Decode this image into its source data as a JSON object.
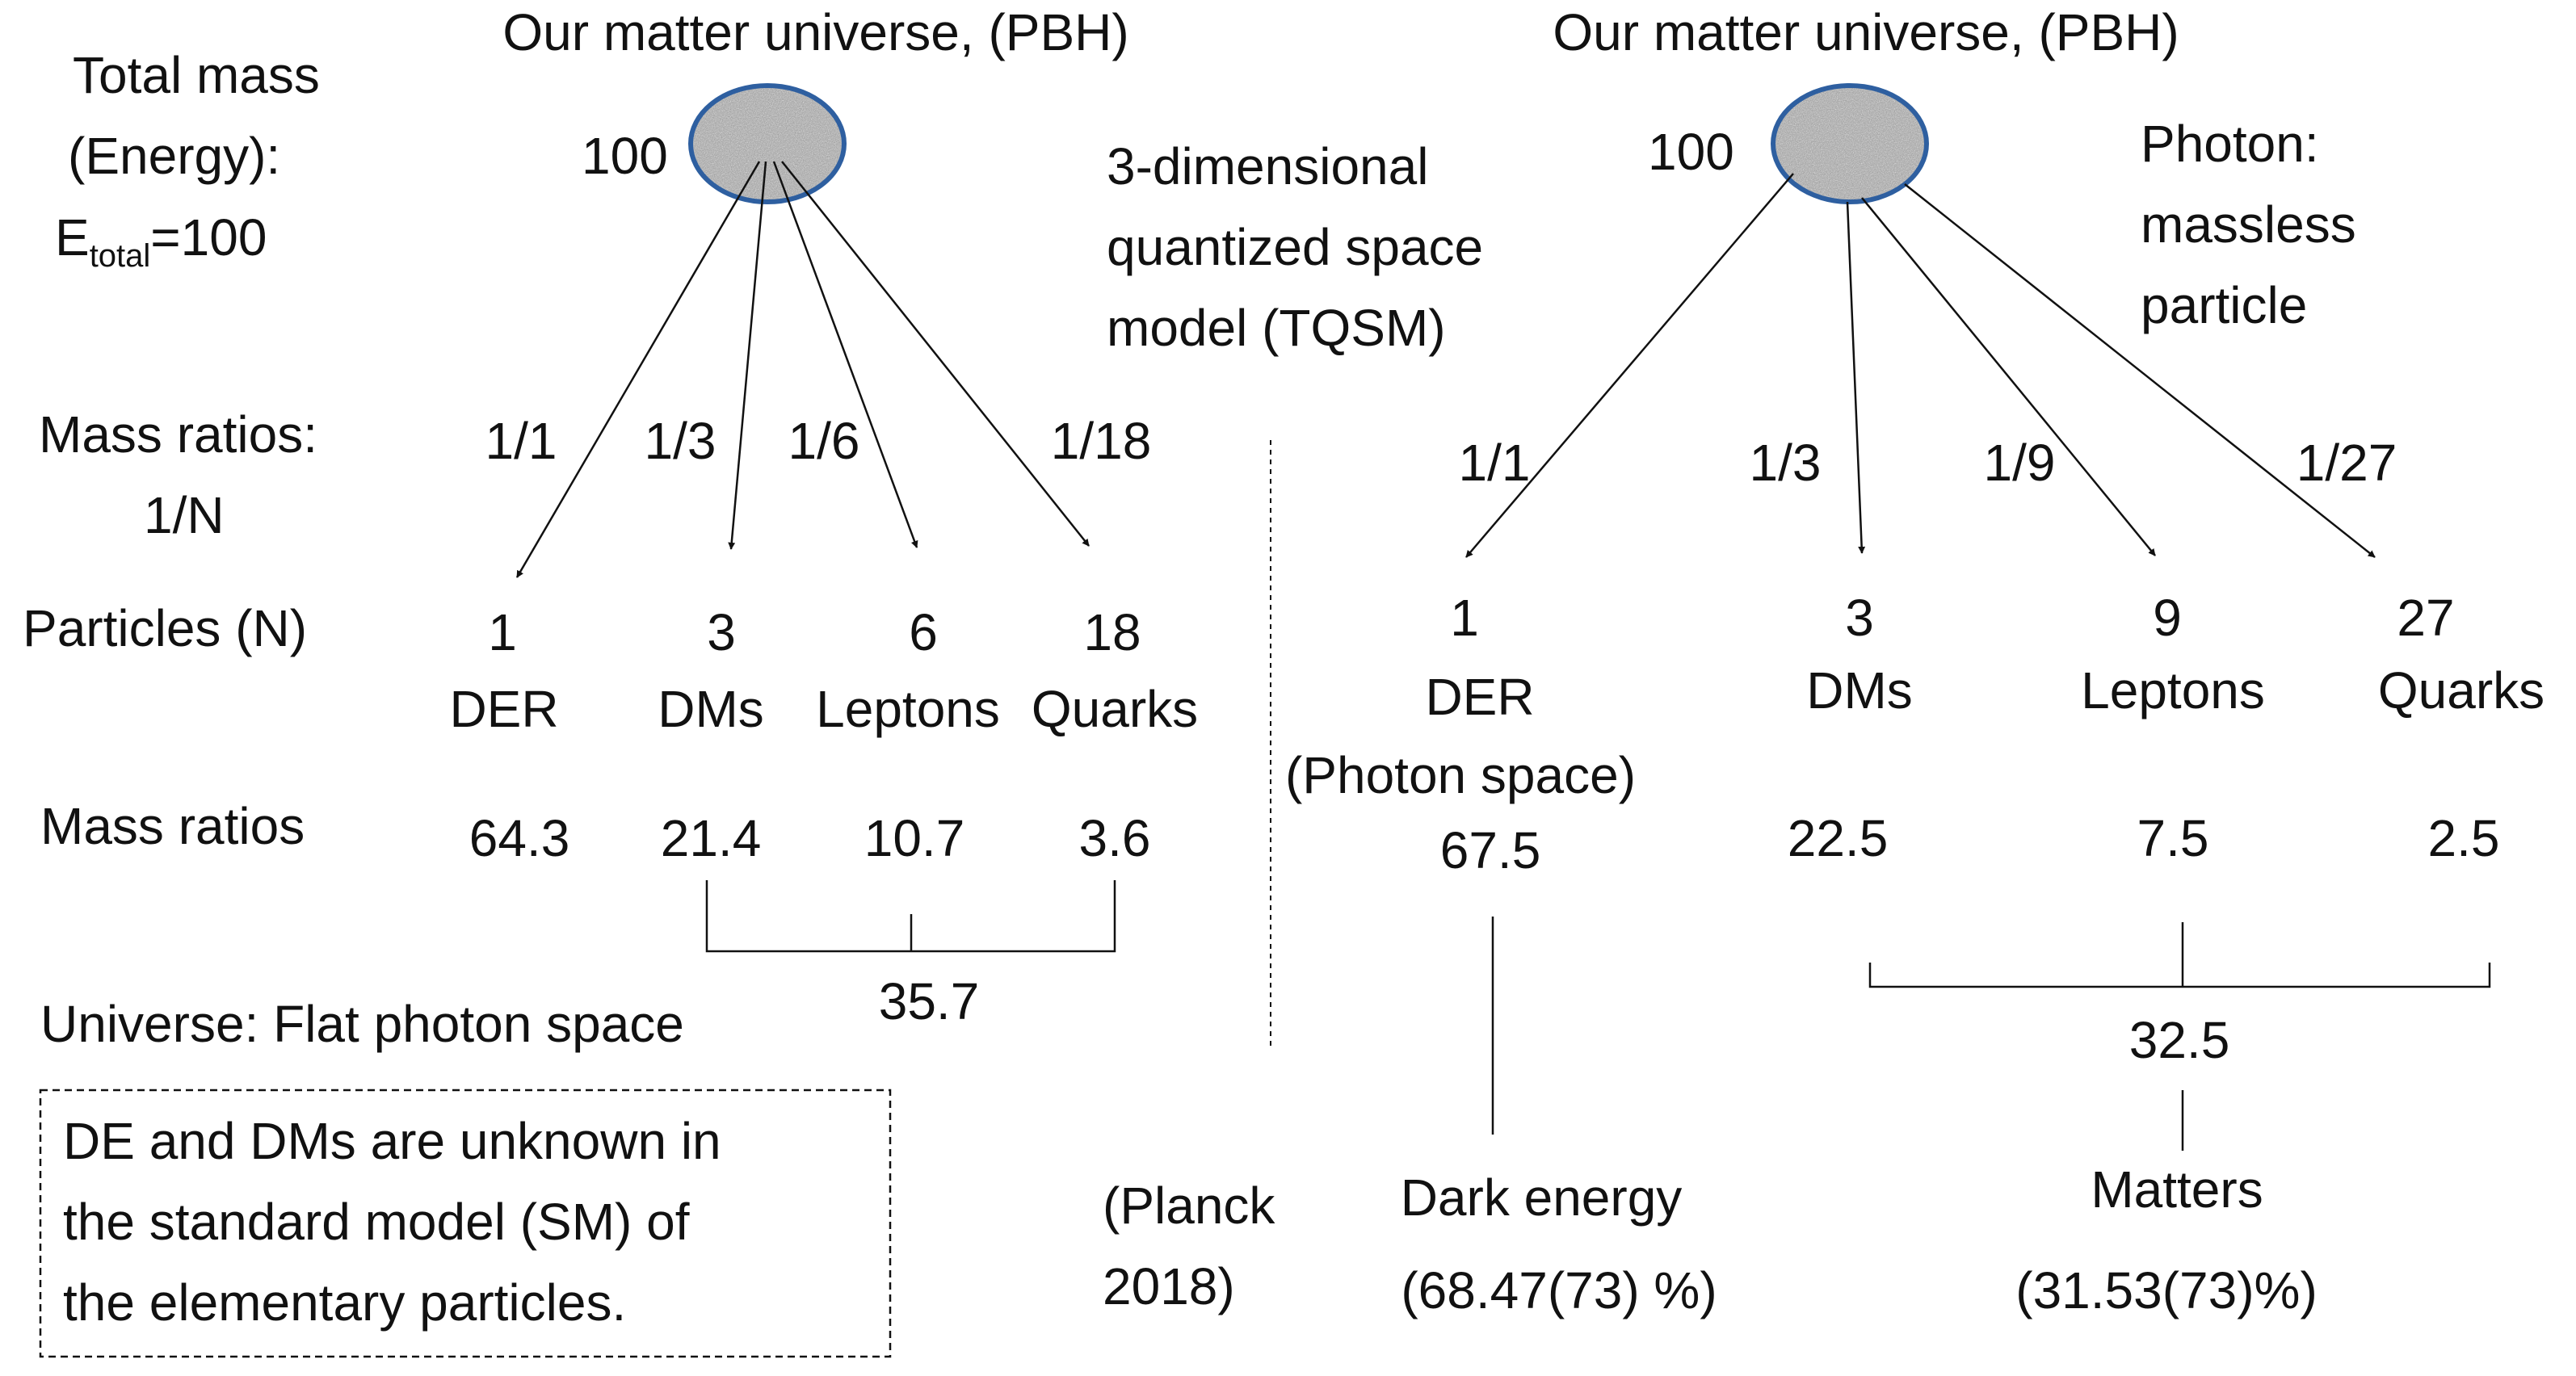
{
  "left": {
    "title": "Our matter universe, (PBH)",
    "total_label_1": "Total mass",
    "total_label_2": "(Energy):",
    "total_label_3_main": "E",
    "total_label_3_sub": "total",
    "total_label_3_end": "=100",
    "ball_value": "100",
    "mass_ratios_label_1": "Mass ratios:",
    "mass_ratios_label_2": "1/N",
    "ratios": [
      "1/1",
      "1/3",
      "1/6",
      "1/18"
    ],
    "particles_label": "Particles (N)",
    "counts": [
      "1",
      "3",
      "6",
      "18"
    ],
    "names": [
      "DER",
      "DMs",
      "Leptons",
      "Quarks"
    ],
    "mass_ratios_row_label": "Mass ratios",
    "mass_values": [
      "64.3",
      "21.4",
      "10.7",
      "3.6"
    ],
    "sum_value": "35.7",
    "universe_note": "Universe: Flat photon space",
    "box_lines": [
      "DE and DMs are unknown in",
      "the standard model (SM) of",
      "the elementary particles."
    ]
  },
  "middle": {
    "model_lines": [
      "3-dimensional",
      "quantized space",
      "model (TQSM)"
    ],
    "planck_lines": [
      "(Planck",
      "2018)"
    ]
  },
  "right": {
    "title": "Our matter universe, (PBH)",
    "ball_value": "100",
    "photon_lines": [
      "Photon:",
      "massless",
      "particle"
    ],
    "ratios": [
      "1/1",
      "1/3",
      "1/9",
      "1/27"
    ],
    "counts": [
      "1",
      "3",
      "9",
      "27"
    ],
    "names": [
      "DER",
      "DMs",
      "Leptons",
      "Quarks"
    ],
    "der_sub": "(Photon space)",
    "mass_values": [
      "67.5",
      "22.5",
      "7.5",
      "2.5"
    ],
    "sum_value": "32.5",
    "dark_energy_label": "Dark energy",
    "dark_energy_value": "(68.47(73) %)",
    "matters_label": "Matters",
    "matters_value": "(31.53(73)%)"
  },
  "colors": {
    "ball_outline": "#2e5fa0",
    "ball_fill": "#9a9a9a",
    "line": "#111111"
  }
}
